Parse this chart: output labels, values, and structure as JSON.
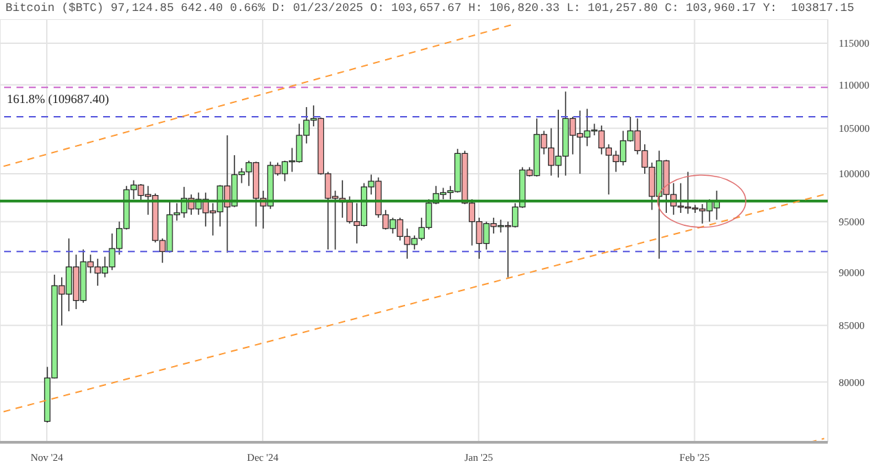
{
  "chart_data": {
    "type": "candlestick",
    "title": "Bitcoin ($BTC) 97,124.85 642.40 0.66% D: 01/23/2025 O: 103,657.67 H: 106,820.33 L: 101,257.80 C: 103,960.17 Y:  103817.15",
    "categories": [
      null,
      null,
      null,
      null,
      null,
      null,
      "Nov '24",
      null,
      null,
      null,
      null,
      null,
      null,
      null,
      null,
      null,
      null,
      null,
      null,
      null,
      null,
      null,
      null,
      null,
      null,
      null,
      null,
      null,
      null,
      null,
      null,
      null,
      null,
      null,
      null,
      null,
      "Dec '24",
      null,
      null,
      null,
      null,
      null,
      null,
      null,
      null,
      null,
      null,
      null,
      null,
      null,
      null,
      null,
      null,
      null,
      null,
      null,
      null,
      null,
      null,
      null,
      null,
      null,
      null,
      null,
      null,
      null,
      "Jan '25",
      null,
      null,
      null,
      null,
      null,
      null,
      null,
      null,
      null,
      null,
      null,
      null,
      null,
      null,
      null,
      null,
      null,
      null,
      null,
      null,
      null,
      null,
      null,
      null,
      null,
      null,
      null,
      null,
      null,
      "Feb '25",
      null,
      null,
      null,
      null,
      null,
      null,
      null,
      null,
      null,
      null,
      null,
      null,
      null,
      null,
      null,
      null,
      null,
      null
    ],
    "ohlc": [
      null,
      null,
      null,
      null,
      null,
      null,
      [
        76700,
        81300,
        76600,
        80350
      ],
      [
        80350,
        89750,
        80300,
        88700
      ],
      [
        88700,
        89500,
        85000,
        87900
      ],
      [
        87900,
        93300,
        86300,
        90500
      ],
      [
        90500,
        91700,
        86500,
        87300
      ],
      [
        87300,
        92200,
        87100,
        91000
      ],
      [
        91000,
        91700,
        89900,
        90500
      ],
      [
        90500,
        91300,
        88700,
        89900
      ],
      [
        89900,
        91500,
        89500,
        90500
      ],
      [
        90500,
        93800,
        90200,
        92300
      ],
      [
        92300,
        95000,
        91700,
        94300
      ],
      [
        94300,
        98700,
        94200,
        98300
      ],
      [
        98300,
        99300,
        97300,
        98800
      ],
      [
        98800,
        98900,
        97100,
        97700
      ],
      [
        97800,
        98700,
        95700,
        97600
      ],
      [
        97700,
        97900,
        92900,
        93100
      ],
      [
        93100,
        93300,
        90900,
        92000
      ],
      [
        92000,
        97100,
        91900,
        95700
      ],
      [
        95700,
        96900,
        95100,
        95900
      ],
      [
        95900,
        98600,
        95400,
        97400
      ],
      [
        97400,
        97800,
        95700,
        96300
      ],
      [
        96300,
        98000,
        95700,
        97300
      ],
      [
        97300,
        98000,
        94500,
        95900
      ],
      [
        96100,
        96900,
        93600,
        95900
      ],
      [
        96000,
        98800,
        94500,
        98700
      ],
      [
        98700,
        104200,
        91900,
        96500
      ],
      [
        96600,
        102000,
        96500,
        99900
      ],
      [
        99900,
        100600,
        99000,
        100200
      ],
      [
        100200,
        101400,
        98700,
        101200
      ],
      [
        101200,
        101300,
        94500,
        97400
      ],
      [
        97400,
        98200,
        94300,
        96600
      ],
      [
        96600,
        101300,
        96300,
        100900
      ],
      [
        100900,
        101200,
        99800,
        100000
      ],
      [
        100000,
        101400,
        99200,
        101300
      ],
      [
        101300,
        102800,
        100200,
        101400
      ],
      [
        101300,
        105500,
        101200,
        104200
      ],
      [
        104200,
        107400,
        103300,
        105900
      ],
      [
        105900,
        107600,
        105200,
        106100
      ],
      [
        106100,
        106200,
        99900,
        100000
      ],
      [
        100000,
        100200,
        92200,
        97400
      ],
      [
        97600,
        98200,
        92200,
        97400
      ],
      [
        97400,
        99300,
        95400,
        97000
      ],
      [
        97000,
        97600,
        94800,
        95000
      ],
      [
        95000,
        96900,
        92800,
        94600
      ],
      [
        94600,
        99000,
        94500,
        98600
      ],
      [
        98600,
        99900,
        97800,
        99200
      ],
      [
        99200,
        99600,
        95400,
        95700
      ],
      [
        95700,
        96200,
        94200,
        94300
      ],
      [
        94300,
        95400,
        93800,
        95200
      ],
      [
        95200,
        95400,
        93100,
        93500
      ],
      [
        93500,
        94300,
        91300,
        92700
      ],
      [
        92700,
        93600,
        92200,
        93300
      ],
      [
        93300,
        95400,
        93100,
        94400
      ],
      [
        94400,
        97300,
        94200,
        96900
      ],
      [
        96900,
        98700,
        96800,
        97900
      ],
      [
        97800,
        98500,
        97300,
        98000
      ],
      [
        98000,
        98700,
        97300,
        98200
      ],
      [
        98100,
        102700,
        98000,
        102200
      ],
      [
        102200,
        102500,
        96800,
        96900
      ],
      [
        96900,
        97300,
        92600,
        95000
      ],
      [
        95000,
        95400,
        91300,
        92800
      ],
      [
        92800,
        95000,
        92200,
        94800
      ],
      [
        94800,
        95400,
        93800,
        94500
      ],
      [
        94500,
        95200,
        93900,
        94600
      ],
      [
        94600,
        95000,
        89500,
        94500
      ],
      [
        94500,
        96900,
        94400,
        96500
      ],
      [
        96500,
        100700,
        96400,
        100400
      ],
      [
        100400,
        100700,
        99700,
        99800
      ],
      [
        99800,
        106100,
        99700,
        104300
      ],
      [
        104300,
        104700,
        102100,
        102800
      ],
      [
        102800,
        105000,
        99800,
        100900
      ],
      [
        100900,
        107100,
        99600,
        101900
      ],
      [
        101900,
        109200,
        99800,
        106100
      ],
      [
        106100,
        106300,
        102100,
        104200
      ],
      [
        104400,
        107000,
        100000,
        104000
      ],
      [
        104000,
        107200,
        103000,
        104700
      ],
      [
        104700,
        105500,
        104200,
        104800
      ],
      [
        104700,
        105300,
        102100,
        102800
      ],
      [
        102800,
        103200,
        97800,
        102000
      ],
      [
        102000,
        102500,
        100200,
        101300
      ],
      [
        101300,
        104700,
        100900,
        103600
      ],
      [
        103600,
        106300,
        103500,
        104700
      ],
      [
        104700,
        106100,
        102100,
        102500
      ],
      [
        102500,
        103200,
        100000,
        100700
      ],
      [
        100700,
        101200,
        96200,
        97600
      ],
      [
        97600,
        102500,
        91300,
        101400
      ],
      [
        101400,
        101500,
        95900,
        97800
      ],
      [
        97800,
        99000,
        95700,
        96600
      ],
      [
        96600,
        99000,
        95900,
        96500
      ],
      [
        96500,
        100200,
        95800,
        96400
      ],
      [
        96400,
        96700,
        95900,
        96300
      ],
      [
        96300,
        96800,
        94800,
        96100
      ],
      [
        96100,
        97300,
        95000,
        97100
      ],
      [
        96400,
        98200,
        95200,
        97100
      ],
      null,
      null,
      null,
      null,
      null,
      null,
      null,
      null,
      null,
      null,
      null,
      null,
      null,
      null,
      null
    ],
    "series": [
      {
        "type": "line",
        "color": "#ff9933",
        "line_style": "dashed",
        "values": [
          100800,
          null,
          null,
          null,
          null,
          null,
          null,
          null,
          null,
          null,
          null,
          null,
          null,
          null,
          null,
          null,
          null,
          null,
          null,
          null,
          null,
          null,
          null,
          null,
          null,
          null,
          null,
          null,
          null,
          null,
          null,
          null,
          null,
          null,
          null,
          null,
          null,
          null,
          null,
          null,
          null,
          null,
          null,
          null,
          null,
          null,
          null,
          null,
          null,
          null,
          null,
          null,
          null,
          null,
          null,
          null,
          null,
          null,
          null,
          null,
          null,
          null,
          null,
          null,
          null,
          null,
          null,
          null,
          null,
          null,
          null,
          117400,
          null,
          null,
          null,
          null,
          null,
          null,
          null,
          null,
          null,
          null,
          null,
          null,
          null,
          null,
          null,
          null,
          null,
          null,
          null,
          null,
          null,
          null,
          null,
          null,
          null,
          null,
          null,
          null,
          null,
          null,
          null,
          null,
          null,
          null,
          null,
          null,
          null,
          null,
          null,
          null,
          null,
          null,
          null
        ]
      },
      {
        "type": "line",
        "color": "#ff9933",
        "line_style": "dashed",
        "values": [
          77500,
          null,
          null,
          null,
          null,
          null,
          null,
          null,
          null,
          null,
          null,
          null,
          null,
          null,
          null,
          null,
          null,
          null,
          null,
          null,
          null,
          null,
          null,
          null,
          null,
          null,
          null,
          null,
          null,
          null,
          null,
          null,
          null,
          null,
          null,
          null,
          null,
          null,
          null,
          null,
          null,
          null,
          null,
          null,
          null,
          null,
          null,
          null,
          null,
          null,
          null,
          null,
          null,
          null,
          null,
          null,
          null,
          null,
          null,
          null,
          null,
          null,
          null,
          null,
          null,
          null,
          null,
          null,
          null,
          null,
          null,
          null,
          null,
          null,
          null,
          null,
          null,
          null,
          null,
          null,
          null,
          null,
          null,
          null,
          null,
          null,
          null,
          null,
          null,
          null,
          null,
          null,
          null,
          null,
          null,
          null,
          null,
          null,
          null,
          null,
          null,
          null,
          null,
          null,
          null,
          null,
          null,
          null,
          null,
          null,
          null,
          null,
          null,
          null,
          97800
        ]
      },
      {
        "type": "line",
        "color": "#ff9933",
        "line_style": "dashed",
        "values": [
          null,
          null,
          null,
          null,
          null,
          null,
          null,
          null,
          null,
          null,
          null,
          null,
          null,
          null,
          null,
          null,
          null,
          null,
          null,
          null,
          null,
          null,
          null,
          null,
          null,
          null,
          null,
          null,
          null,
          null,
          null,
          null,
          null,
          null,
          null,
          null,
          null,
          null,
          null,
          null,
          null,
          null,
          null,
          null,
          null,
          null,
          null,
          null,
          null,
          null,
          null,
          null,
          null,
          null,
          null,
          null,
          null,
          null,
          null,
          null,
          null,
          null,
          null,
          null,
          null,
          null,
          null,
          null,
          null,
          null,
          null,
          null,
          null,
          null,
          null,
          null,
          null,
          null,
          null,
          null,
          null,
          null,
          null,
          null,
          null,
          null,
          null,
          null,
          null,
          null,
          null,
          null,
          null,
          null,
          null,
          null,
          null,
          null,
          null,
          null,
          null,
          null,
          null,
          null,
          null,
          null,
          null,
          null,
          null,
          null,
          null,
          null,
          75000,
          null,
          75300
        ]
      }
    ],
    "ref_lines": [
      {
        "axis": "y",
        "value": 109687.4,
        "label": "161.8% (109687.40)",
        "color": "#cc66cc",
        "line_style": "dashed"
      },
      {
        "axis": "y",
        "value": 106300,
        "color": "#5555dd",
        "line_style": "dashed"
      },
      {
        "axis": "y",
        "value": 92000,
        "color": "#5555dd",
        "line_style": "dashed"
      },
      {
        "axis": "y",
        "value": 97124.85,
        "color": "#228b22",
        "line_style": "solid"
      }
    ],
    "ylim": [
      75000,
      118000
    ],
    "yticks": [
      80000,
      85000,
      90000,
      95000,
      100000,
      105000,
      110000,
      115000
    ],
    "log": true,
    "grid": true
  }
}
